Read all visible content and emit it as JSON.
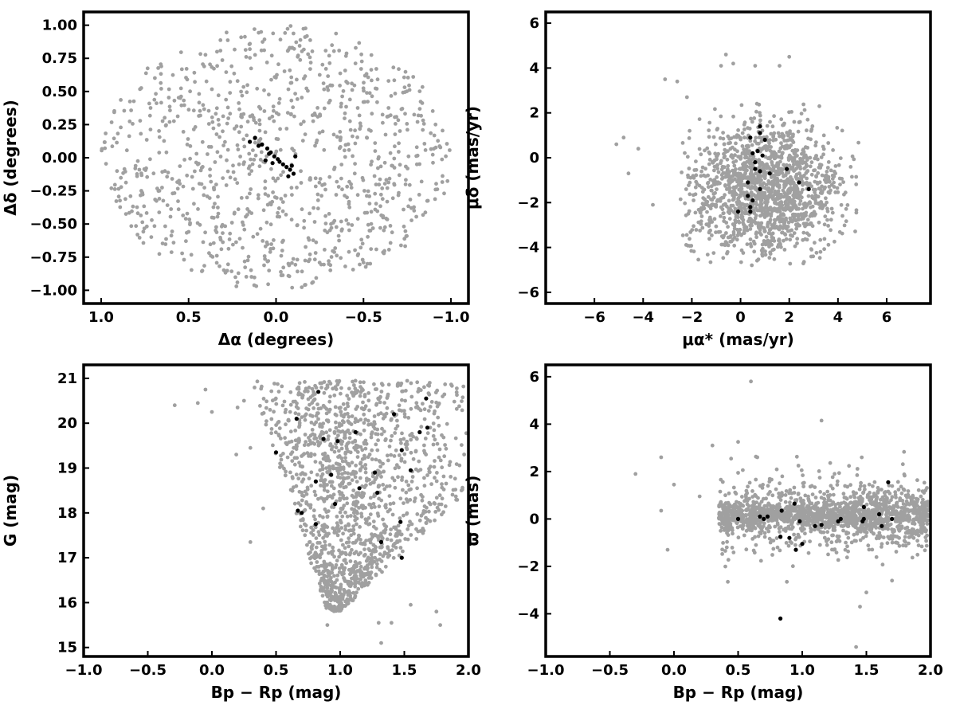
{
  "colors": {
    "field": "#a0a0a0",
    "members": "#000000",
    "frame": "#000000"
  },
  "chart_data": [
    {
      "type": "scatter",
      "id": "sky",
      "xlabel": "Δα (degrees)",
      "ylabel": "Δδ (degrees)",
      "xlim": [
        1.1,
        -1.1
      ],
      "ylim": [
        -1.1,
        1.1
      ],
      "xticks": [
        1.0,
        0.5,
        0.0,
        -0.5,
        -1.0
      ],
      "xtick_labels": [
        "1.0",
        "0.5",
        "0.0",
        "−0.5",
        "−1.0"
      ],
      "yticks": [
        1.0,
        0.75,
        0.5,
        0.25,
        0.0,
        -0.25,
        -0.5,
        -0.75,
        -1.0
      ],
      "ytick_labels": [
        "1.00",
        "0.75",
        "0.50",
        "0.25",
        "0.00",
        "−0.25",
        "−0.50",
        "−0.75",
        "−1.00"
      ],
      "field_distribution": {
        "shape": "disk",
        "center": [
          0,
          0
        ],
        "radius": 1.0,
        "count": 1000
      },
      "members": [
        [
          0.12,
          0.15
        ],
        [
          0.08,
          0.1
        ],
        [
          0.1,
          0.09
        ],
        [
          0.05,
          0.07
        ],
        [
          0.03,
          0.04
        ],
        [
          0.01,
          0.01
        ],
        [
          -0.01,
          -0.01
        ],
        [
          -0.02,
          -0.03
        ],
        [
          -0.04,
          -0.05
        ],
        [
          -0.06,
          -0.07
        ],
        [
          -0.08,
          -0.09
        ],
        [
          -0.1,
          -0.12
        ],
        [
          -0.07,
          -0.14
        ],
        [
          -0.09,
          -0.06
        ],
        [
          0.02,
          -0.04
        ],
        [
          0.04,
          0.03
        ],
        [
          0.15,
          0.12
        ],
        [
          0.06,
          -0.02
        ],
        [
          -0.11,
          0.01
        ]
      ]
    },
    {
      "type": "scatter",
      "id": "proper-motion",
      "xlabel": "μα* (mas/yr)",
      "ylabel": "μδ (mas/yr)",
      "xlim": [
        -8.0,
        7.8
      ],
      "ylim": [
        -6.5,
        6.5
      ],
      "xticks": [
        -6,
        -4,
        -2,
        0,
        2,
        4,
        6
      ],
      "xtick_labels": [
        "−6",
        "−4",
        "−2",
        "0",
        "2",
        "4",
        "6"
      ],
      "yticks": [
        6,
        4,
        2,
        0,
        -2,
        -4,
        -6
      ],
      "ytick_labels": [
        "6",
        "4",
        "2",
        "0",
        "−2",
        "−4",
        "−6"
      ],
      "field_distribution": {
        "shape": "gaussian",
        "center": [
          1.0,
          -1.5
        ],
        "sigma": [
          1.6,
          1.5
        ],
        "x_range": [
          -2.5,
          4.9
        ],
        "y_range": [
          -4.8,
          2.5
        ],
        "count": 1500
      },
      "field_outliers": [
        [
          -4.8,
          0.9
        ],
        [
          -5.1,
          0.6
        ],
        [
          -4.2,
          0.4
        ],
        [
          -3.1,
          3.5
        ],
        [
          -2.6,
          3.4
        ],
        [
          -0.8,
          4.1
        ],
        [
          -0.3,
          4.2
        ],
        [
          -0.6,
          4.6
        ],
        [
          0.6,
          4.1
        ],
        [
          1.6,
          4.1
        ],
        [
          2.0,
          4.5
        ],
        [
          -3.6,
          -2.1
        ],
        [
          -4.6,
          -0.7
        ],
        [
          -2.2,
          2.7
        ]
      ],
      "members": [
        [
          0.8,
          1.4
        ],
        [
          0.8,
          1.1
        ],
        [
          1.0,
          0.8
        ],
        [
          0.4,
          0.9
        ],
        [
          0.5,
          0.2
        ],
        [
          0.7,
          0.3
        ],
        [
          0.9,
          0.1
        ],
        [
          0.6,
          -0.2
        ],
        [
          0.6,
          -0.5
        ],
        [
          0.8,
          -0.6
        ],
        [
          1.2,
          -0.7
        ],
        [
          0.3,
          -1.1
        ],
        [
          0.8,
          -1.4
        ],
        [
          0.3,
          -1.7
        ],
        [
          0.5,
          -1.9
        ],
        [
          0.4,
          -2.2
        ],
        [
          0.4,
          -2.4
        ],
        [
          -0.1,
          -2.4
        ],
        [
          1.9,
          -0.5
        ],
        [
          2.4,
          -1.1
        ],
        [
          2.8,
          -1.4
        ]
      ]
    },
    {
      "type": "scatter",
      "id": "cmd",
      "xlabel": "Bp − Rp (mag)",
      "ylabel": "G (mag)",
      "xlim": [
        -1.0,
        2.0
      ],
      "ylim": [
        14.8,
        21.3
      ],
      "xticks": [
        -1.0,
        -0.5,
        0.0,
        0.5,
        1.0,
        1.5,
        2.0
      ],
      "xtick_labels": [
        "−1.0",
        "−0.5",
        "0.0",
        "0.5",
        "1.0",
        "1.5",
        "2.0"
      ],
      "yticks": [
        21,
        20,
        19,
        18,
        17,
        16,
        15
      ],
      "ytick_labels": [
        "21",
        "20",
        "19",
        "18",
        "17",
        "16",
        "15"
      ],
      "field_distribution": {
        "shape": "triangle",
        "count": 1500
      },
      "field_outliers": [
        [
          -0.29,
          20.4
        ],
        [
          -0.11,
          20.45
        ],
        [
          -0.05,
          20.75
        ],
        [
          0.0,
          20.25
        ],
        [
          0.2,
          20.35
        ],
        [
          0.25,
          20.5
        ],
        [
          0.19,
          19.3
        ],
        [
          0.3,
          19.45
        ],
        [
          0.3,
          17.35
        ],
        [
          0.4,
          18.1
        ],
        [
          0.9,
          15.5
        ],
        [
          1.3,
          15.55
        ],
        [
          1.4,
          15.55
        ],
        [
          1.75,
          15.8
        ],
        [
          1.78,
          15.5
        ],
        [
          1.32,
          15.1
        ],
        [
          1.1,
          16.05
        ],
        [
          1.55,
          15.95
        ]
      ],
      "members": [
        [
          0.83,
          20.7
        ],
        [
          0.66,
          20.1
        ],
        [
          0.87,
          19.65
        ],
        [
          0.98,
          19.6
        ],
        [
          1.12,
          19.8
        ],
        [
          1.42,
          20.2
        ],
        [
          1.67,
          20.55
        ],
        [
          1.68,
          19.9
        ],
        [
          1.62,
          19.8
        ],
        [
          0.5,
          19.35
        ],
        [
          1.48,
          19.4
        ],
        [
          1.55,
          18.95
        ],
        [
          0.93,
          18.85
        ],
        [
          1.27,
          18.9
        ],
        [
          0.81,
          18.7
        ],
        [
          1.15,
          18.55
        ],
        [
          1.29,
          18.45
        ],
        [
          0.96,
          18.2
        ],
        [
          0.67,
          18.05
        ],
        [
          0.7,
          18.0
        ],
        [
          0.81,
          17.75
        ],
        [
          1.47,
          17.8
        ],
        [
          1.32,
          17.35
        ],
        [
          1.48,
          17.0
        ]
      ]
    },
    {
      "type": "scatter",
      "id": "parallax",
      "xlabel": "Bp − Rp (mag)",
      "ylabel": "ϖ (mas)",
      "xlim": [
        -1.0,
        2.0
      ],
      "ylim": [
        -5.8,
        6.5
      ],
      "xticks": [
        -1.0,
        -0.5,
        0.0,
        0.5,
        1.0,
        1.5,
        2.0
      ],
      "xtick_labels": [
        "−1.0",
        "−0.5",
        "0.0",
        "0.5",
        "1.0",
        "1.5",
        "2.0"
      ],
      "yticks": [
        6,
        4,
        2,
        0,
        -2,
        -4
      ],
      "ytick_labels": [
        "6",
        "4",
        "2",
        "0",
        "−2",
        "−4"
      ],
      "field_distribution": {
        "shape": "band",
        "x_range": [
          0.35,
          2.0
        ],
        "y_center": 0.15,
        "sigma": 0.75,
        "count": 1700
      },
      "field_outliers": [
        [
          -0.3,
          1.9
        ],
        [
          -0.1,
          2.6
        ],
        [
          -0.1,
          0.35
        ],
        [
          0.0,
          1.45
        ],
        [
          -0.05,
          -1.3
        ],
        [
          0.6,
          5.8
        ],
        [
          0.3,
          3.1
        ],
        [
          1.15,
          4.15
        ],
        [
          0.5,
          3.25
        ],
        [
          0.65,
          2.6
        ],
        [
          0.42,
          -2.65
        ],
        [
          1.42,
          -5.4
        ],
        [
          1.45,
          -3.7
        ],
        [
          1.5,
          -3.1
        ],
        [
          1.7,
          -2.6
        ],
        [
          0.88,
          -2.65
        ],
        [
          0.2,
          0.95
        ]
      ],
      "members": [
        [
          0.5,
          0.0
        ],
        [
          0.67,
          0.1
        ],
        [
          0.7,
          0.0
        ],
        [
          0.73,
          0.1
        ],
        [
          0.84,
          0.35
        ],
        [
          0.94,
          0.65
        ],
        [
          0.9,
          -0.8
        ],
        [
          0.83,
          -0.75
        ],
        [
          0.95,
          -1.3
        ],
        [
          1.0,
          -1.05
        ],
        [
          0.98,
          -0.1
        ],
        [
          1.1,
          -0.3
        ],
        [
          1.15,
          -0.25
        ],
        [
          1.28,
          -0.1
        ],
        [
          1.3,
          0.0
        ],
        [
          1.48,
          0.5
        ],
        [
          1.48,
          0.0
        ],
        [
          1.47,
          -0.1
        ],
        [
          1.6,
          0.2
        ],
        [
          1.67,
          1.55
        ],
        [
          1.62,
          -0.3
        ],
        [
          1.7,
          0.0
        ],
        [
          0.83,
          -4.2
        ]
      ]
    }
  ]
}
